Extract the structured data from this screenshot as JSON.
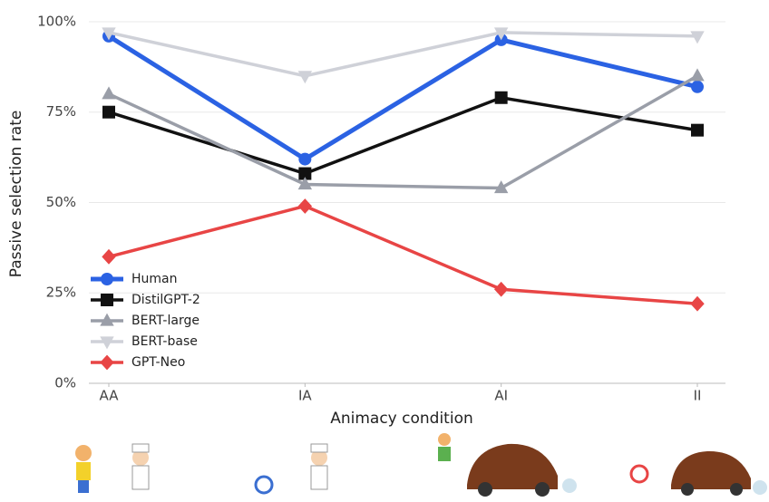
{
  "chart_data": {
    "type": "line",
    "x_label": "Animacy condition",
    "y_label": "Passive selection rate",
    "categories": [
      "AA",
      "IA",
      "AI",
      "II"
    ],
    "series": [
      {
        "name": "Human",
        "color": "#2b62e3",
        "marker": "circle",
        "values": [
          96,
          62,
          95,
          82
        ]
      },
      {
        "name": "DistilGPT-2",
        "color": "#111111",
        "marker": "square",
        "values": [
          75,
          58,
          79,
          70
        ]
      },
      {
        "name": "BERT-large",
        "color": "#9a9ea8",
        "marker": "triangle-up",
        "values": [
          80,
          55,
          54,
          85
        ]
      },
      {
        "name": "BERT-base",
        "color": "#cfd1d8",
        "marker": "triangle-down",
        "values": [
          97,
          85,
          97,
          96
        ]
      },
      {
        "name": "GPT-Neo",
        "color": "#e84545",
        "marker": "diamond",
        "values": [
          35,
          49,
          26,
          22
        ]
      }
    ],
    "ylim": [
      0,
      105
    ],
    "yticks": [
      {
        "value": 0,
        "label": "0%"
      },
      {
        "value": 25,
        "label": "25%"
      },
      {
        "value": 50,
        "label": "50%"
      },
      {
        "value": 75,
        "label": "75%"
      },
      {
        "value": 100,
        "label": "100%"
      }
    ],
    "grid": true,
    "legend": "lower-left"
  }
}
